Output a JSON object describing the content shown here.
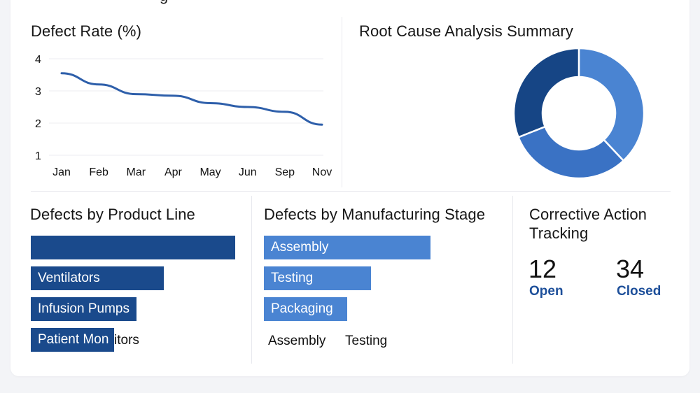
{
  "chart_data": [
    {
      "type": "line",
      "title": "Defect Rate (%)",
      "categories": [
        "Jan",
        "Feb",
        "Mar",
        "Apr",
        "May",
        "Jun",
        "Sep",
        "Nov"
      ],
      "series": [
        {
          "values": [
            3.55,
            3.2,
            2.9,
            2.85,
            2.62,
            2.5,
            2.35,
            1.95
          ]
        }
      ],
      "y_ticks": [
        "1",
        "2",
        "3",
        "4"
      ],
      "ylim": [
        1,
        4
      ],
      "grid": true,
      "colors": {
        "line": "#2e5faa",
        "grid": "#eceef2"
      }
    },
    {
      "type": "pie",
      "title": "Root Cause Analysis Summary",
      "style": "donut",
      "values": [
        38,
        31,
        31
      ],
      "colors": [
        "#4a84d2",
        "#3a72c4",
        "#164585"
      ]
    },
    {
      "type": "bar",
      "title": "Defects by Product Line",
      "orientation": "horizontal",
      "categories": [
        "",
        "Ventilators",
        "Infusion Pumps",
        "Patient Monitors"
      ],
      "values": [
        100,
        65,
        52,
        41
      ],
      "color": "#1a4a8c",
      "label_split": {
        "inside": "Patient Mon",
        "outside": "itors"
      }
    },
    {
      "type": "bar",
      "title": "Defects by Manufacturing Stage",
      "orientation": "horizontal",
      "categories": [
        "Assembly",
        "Testing",
        "Packaging"
      ],
      "values": [
        100,
        64,
        50
      ],
      "color": "#4a84d2",
      "bottom_labels": [
        "Assembly",
        "Testing"
      ]
    }
  ],
  "header_fragment": "g",
  "corrective": {
    "title_line1": "Corrective Action",
    "title_line2": "Tracking",
    "open_value": "12",
    "open_label": "Open",
    "closed_value": "34",
    "closed_label": "Closed"
  }
}
